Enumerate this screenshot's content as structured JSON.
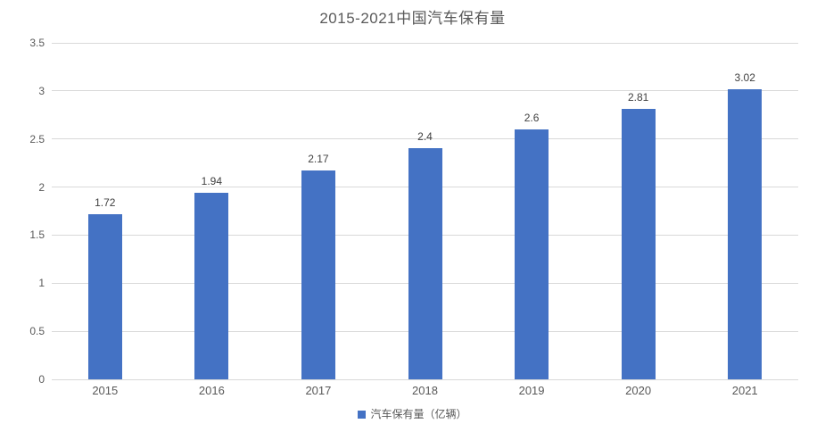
{
  "chart_data": {
    "type": "bar",
    "title": "2015-2021中国汽车保有量",
    "categories": [
      "2015",
      "2016",
      "2017",
      "2018",
      "2019",
      "2020",
      "2021"
    ],
    "values": [
      1.72,
      1.94,
      2.17,
      2.4,
      2.6,
      2.81,
      3.02
    ],
    "value_labels": [
      "1.72",
      "1.94",
      "2.17",
      "2.4",
      "2.6",
      "2.81",
      "3.02"
    ],
    "series_name": "汽车保有量（亿辆）",
    "ylim": [
      0,
      3.5
    ],
    "ytick_step": 0.5,
    "ytick_labels": [
      "0",
      "0.5",
      "1",
      "1.5",
      "2",
      "2.5",
      "3",
      "3.5"
    ],
    "xlabel": "",
    "ylabel": "",
    "grid": "on",
    "legend_position": "bottom",
    "bar_color": "#4472C4",
    "gridline_color": "#D9D9D9",
    "axis_line_color": "#D9D9D9",
    "title_color": "#595959",
    "tick_label_color": "#595959",
    "data_label_color": "#404040"
  }
}
